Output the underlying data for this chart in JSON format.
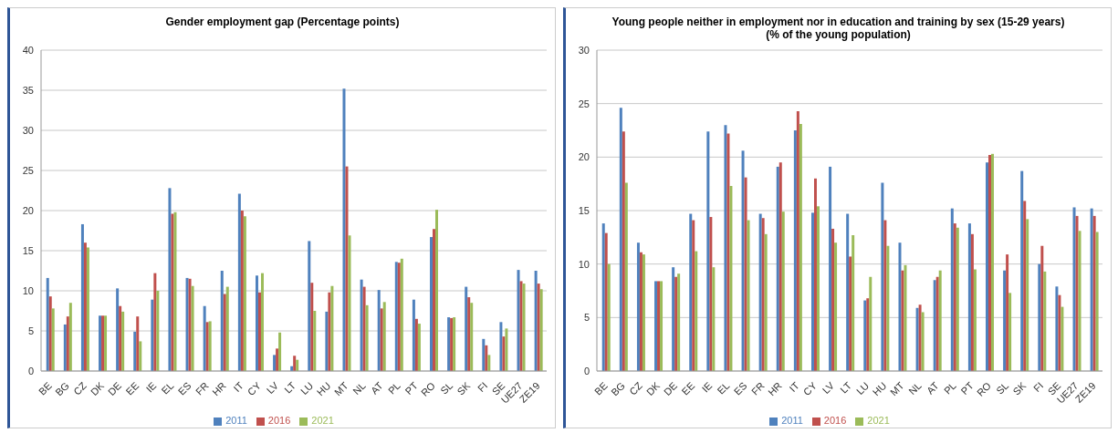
{
  "chart_data": [
    {
      "type": "bar",
      "title": "Gender employment gap (Percentage points)",
      "categories": [
        "BE",
        "BG",
        "CZ",
        "DK",
        "DE",
        "EE",
        "IE",
        "EL",
        "ES",
        "FR",
        "HR",
        "IT",
        "CY",
        "LV",
        "LT",
        "LU",
        "HU",
        "MT",
        "NL",
        "AT",
        "PL",
        "PT",
        "RO",
        "SL",
        "SK",
        "FI",
        "SE",
        "UE27",
        "ZE19"
      ],
      "series": [
        {
          "name": "2011",
          "color": "#4f81bd",
          "values": [
            11.6,
            5.8,
            18.3,
            6.9,
            10.3,
            4.9,
            8.9,
            22.8,
            11.6,
            8.1,
            12.5,
            22.1,
            11.9,
            2.0,
            0.6,
            16.2,
            7.4,
            35.2,
            11.4,
            10.1,
            13.6,
            8.9,
            16.7,
            6.7,
            10.5,
            4.0,
            6.1,
            12.6,
            12.5
          ]
        },
        {
          "name": "2016",
          "color": "#c0504d",
          "values": [
            9.3,
            6.8,
            16.0,
            6.9,
            8.1,
            6.8,
            12.2,
            19.6,
            11.5,
            6.1,
            9.6,
            20.0,
            9.8,
            2.8,
            1.9,
            11.0,
            9.8,
            25.5,
            10.5,
            7.8,
            13.5,
            6.5,
            17.7,
            6.6,
            9.2,
            3.2,
            4.3,
            11.2,
            10.9
          ]
        },
        {
          "name": "2021",
          "color": "#9bbb59",
          "values": [
            7.8,
            8.5,
            15.4,
            6.9,
            7.4,
            3.7,
            10.0,
            19.8,
            10.6,
            6.2,
            10.5,
            19.3,
            12.2,
            4.8,
            1.4,
            7.5,
            10.6,
            16.9,
            8.2,
            8.6,
            14.0,
            5.9,
            20.1,
            6.7,
            8.5,
            2.0,
            5.3,
            10.9,
            10.2
          ]
        }
      ],
      "ylim": [
        0,
        40
      ],
      "yticks": [
        0,
        5,
        10,
        15,
        20,
        25,
        30,
        35,
        40
      ],
      "grid": "y",
      "legend": "bottom"
    },
    {
      "type": "bar",
      "title": "Young people neither in employment nor in education and training by sex (15-29 years)",
      "subtitle": "(% of the young population)",
      "categories": [
        "BE",
        "BG",
        "CZ",
        "DK",
        "DE",
        "EE",
        "IE",
        "EL",
        "ES",
        "FR",
        "HR",
        "IT",
        "CY",
        "LV",
        "LT",
        "LU",
        "HU",
        "MT",
        "NL",
        "AT",
        "PL",
        "PT",
        "RO",
        "SL",
        "SK",
        "FI",
        "SE",
        "UE27",
        "ZE19"
      ],
      "series": [
        {
          "name": "2011",
          "color": "#4f81bd",
          "values": [
            13.8,
            24.6,
            12.0,
            8.4,
            9.7,
            14.7,
            22.4,
            23.0,
            20.6,
            14.7,
            19.1,
            22.5,
            14.8,
            19.1,
            14.7,
            6.6,
            17.6,
            12.0,
            5.9,
            8.5,
            15.2,
            13.8,
            19.5,
            9.4,
            18.7,
            10.0,
            7.9,
            15.3,
            15.2
          ]
        },
        {
          "name": "2016",
          "color": "#c0504d",
          "values": [
            12.9,
            22.4,
            11.1,
            8.4,
            8.8,
            14.1,
            14.4,
            22.2,
            18.1,
            14.3,
            19.5,
            24.3,
            18.0,
            13.3,
            10.7,
            6.8,
            14.1,
            9.4,
            6.2,
            8.8,
            13.8,
            12.8,
            20.2,
            10.9,
            15.9,
            11.7,
            7.1,
            14.5,
            14.5
          ]
        },
        {
          "name": "2021",
          "color": "#9bbb59",
          "values": [
            10.0,
            17.6,
            10.9,
            8.4,
            9.1,
            11.2,
            9.7,
            17.3,
            14.1,
            12.8,
            14.9,
            23.1,
            15.4,
            12.0,
            12.7,
            8.8,
            11.7,
            9.9,
            5.5,
            9.4,
            13.4,
            9.5,
            20.3,
            7.3,
            14.2,
            9.3,
            6.0,
            13.1,
            13.0
          ]
        }
      ],
      "ylim": [
        0,
        30
      ],
      "yticks": [
        0,
        5,
        10,
        15,
        20,
        25,
        30
      ],
      "grid": "y",
      "legend": "bottom"
    }
  ]
}
